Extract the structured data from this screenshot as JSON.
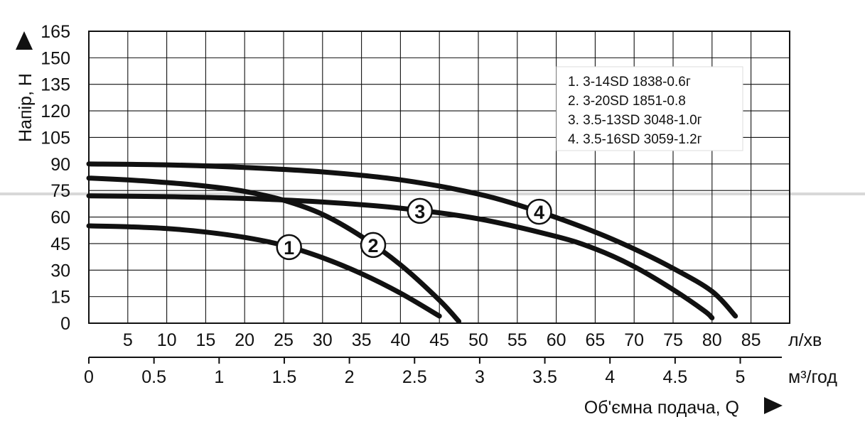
{
  "chart_data": {
    "type": "line",
    "ylabel": "Напір, Н",
    "xlabel": "Об'ємна подача, Q",
    "x_unit_primary": "л/хв",
    "x_unit_secondary": "м³/год",
    "ylim": [
      0,
      165
    ],
    "y_ticks": [
      0,
      15,
      30,
      45,
      60,
      75,
      90,
      105,
      120,
      135,
      150,
      165
    ],
    "x_primary_range": [
      0,
      90
    ],
    "x_primary_ticks": [
      5,
      10,
      15,
      20,
      25,
      30,
      35,
      40,
      45,
      50,
      55,
      60,
      65,
      70,
      75,
      80,
      85
    ],
    "x_secondary_ticks": [
      "0",
      "0.5",
      "1",
      "1.5",
      "2",
      "2.5",
      "3",
      "3.5",
      "4",
      "4.5",
      "5"
    ],
    "grid": true,
    "legend_position": "top-right",
    "legend": [
      "1. 3-14SD 1838-0.6г",
      "2. 3-20SD 1851-0.8",
      "3. 3.5-13SD 3048-1.0г",
      "4. 3.5-16SD 3059-1.2г"
    ],
    "series": [
      {
        "name": "1",
        "label_at": 25.7,
        "points": [
          [
            0,
            55
          ],
          [
            5,
            54.5
          ],
          [
            10,
            53.5
          ],
          [
            15,
            51.5
          ],
          [
            20,
            48.5
          ],
          [
            25,
            44
          ],
          [
            30,
            37
          ],
          [
            35,
            28
          ],
          [
            40,
            17
          ],
          [
            45,
            4
          ]
        ]
      },
      {
        "name": "2",
        "label_at": 36.5,
        "points": [
          [
            0,
            82
          ],
          [
            5,
            81
          ],
          [
            10,
            79.5
          ],
          [
            15,
            77.5
          ],
          [
            20,
            74.5
          ],
          [
            25,
            69.5
          ],
          [
            30,
            61.5
          ],
          [
            35,
            49
          ],
          [
            40,
            33
          ],
          [
            45,
            13
          ],
          [
            47.5,
            1
          ]
        ]
      },
      {
        "name": "3",
        "label_at": 42.5,
        "points": [
          [
            0,
            72
          ],
          [
            10,
            71.5
          ],
          [
            20,
            70.5
          ],
          [
            30,
            68.5
          ],
          [
            40,
            65
          ],
          [
            50,
            59
          ],
          [
            60,
            49
          ],
          [
            65,
            42
          ],
          [
            70,
            32
          ],
          [
            75,
            19
          ],
          [
            79,
            7
          ],
          [
            80,
            3
          ]
        ]
      },
      {
        "name": "4",
        "label_at": 57.8,
        "points": [
          [
            0,
            90
          ],
          [
            10,
            89.5
          ],
          [
            20,
            88
          ],
          [
            30,
            85.5
          ],
          [
            40,
            81
          ],
          [
            50,
            73
          ],
          [
            57.8,
            63
          ],
          [
            65,
            51.5
          ],
          [
            70,
            42
          ],
          [
            75,
            31
          ],
          [
            80,
            18
          ],
          [
            83,
            4
          ]
        ]
      }
    ]
  }
}
